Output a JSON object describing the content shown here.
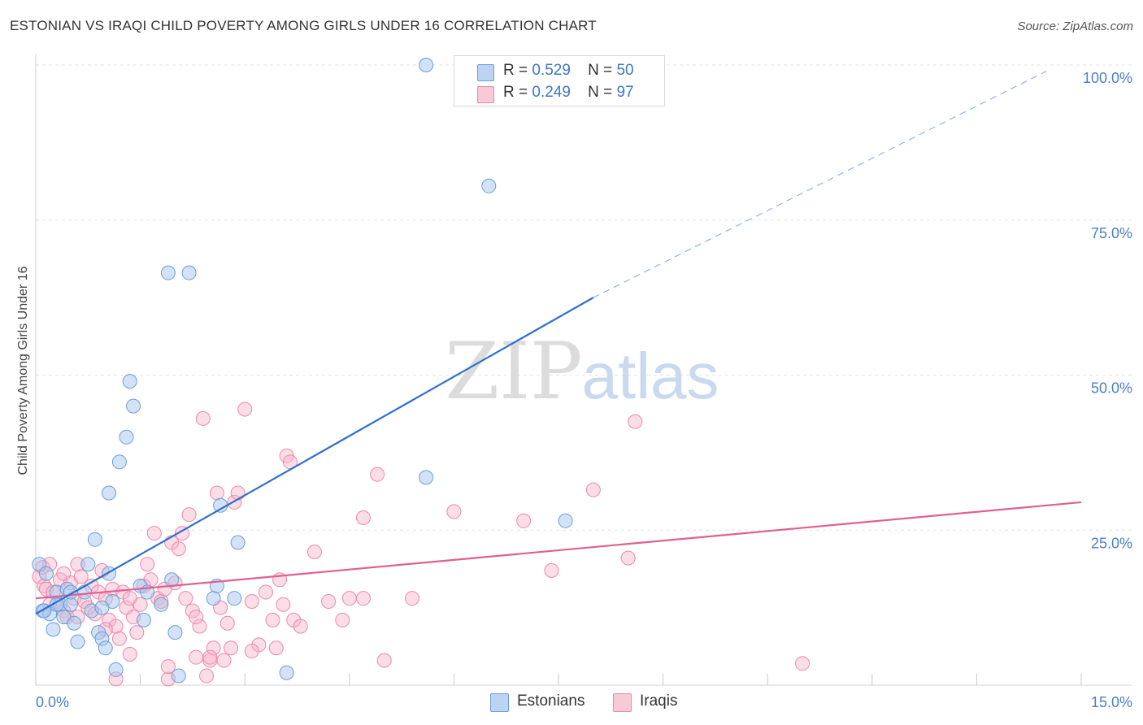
{
  "title": "ESTONIAN VS IRAQI CHILD POVERTY AMONG GIRLS UNDER 16 CORRELATION CHART",
  "source": "Source: ZipAtlas.com",
  "watermark": {
    "zip": "ZIP",
    "atlas": "atlas"
  },
  "colors": {
    "estonians": "#6a9fdc",
    "iraqis": "#ee88a9",
    "estonians_line": "#2f6fcf",
    "iraqis_line": "#e0608f",
    "tick_text": "#4a7ec9"
  },
  "stats": {
    "estonians": {
      "r_label": "R =",
      "r_value": "0.529",
      "n_label": "N =",
      "n_value": "50"
    },
    "iraqis": {
      "r_label": "R =",
      "r_value": "0.249",
      "n_label": "N =",
      "n_value": "97"
    }
  },
  "legend": {
    "estonians": "Estonians",
    "iraqis": "Iraqis"
  },
  "chart_data": {
    "type": "scatter",
    "title": "ESTONIAN VS IRAQI CHILD POVERTY AMONG GIRLS UNDER 16 CORRELATION CHART",
    "xlabel": "",
    "ylabel": "Child Poverty Among Girls Under 16",
    "xlim": [
      0,
      15
    ],
    "ylim": [
      0,
      100
    ],
    "x_tick_labels": [
      "0.0%",
      "15.0%"
    ],
    "y_ticks": [
      25,
      50,
      75,
      100
    ],
    "y_tick_labels": [
      "25.0%",
      "50.0%",
      "75.0%",
      "100.0%"
    ],
    "grid": true,
    "series": [
      {
        "name": "Estonians",
        "r": 0.529,
        "n": 50,
        "trend": {
          "x0": 0.0,
          "y0": 11.5,
          "x1": 8.0,
          "y1": 62.5,
          "dashed_to_x": 14.5,
          "dashed_to_y": 99.0
        },
        "points": [
          [
            0.05,
            19.5
          ],
          [
            0.1,
            12
          ],
          [
            0.15,
            18
          ],
          [
            0.2,
            11.5
          ],
          [
            0.25,
            9
          ],
          [
            0.3,
            15
          ],
          [
            0.35,
            13
          ],
          [
            0.4,
            11
          ],
          [
            0.45,
            15.5
          ],
          [
            0.5,
            13
          ],
          [
            0.55,
            10
          ],
          [
            0.6,
            7
          ],
          [
            0.7,
            15
          ],
          [
            0.75,
            19.5
          ],
          [
            0.8,
            12
          ],
          [
            0.85,
            23.5
          ],
          [
            0.9,
            8.5
          ],
          [
            0.95,
            7.5
          ],
          [
            1.0,
            6
          ],
          [
            1.05,
            18
          ],
          [
            1.1,
            13.5
          ],
          [
            1.05,
            31
          ],
          [
            1.15,
            2.5
          ],
          [
            1.2,
            36
          ],
          [
            1.3,
            40
          ],
          [
            1.35,
            49
          ],
          [
            1.4,
            45
          ],
          [
            1.5,
            16
          ],
          [
            1.55,
            10.5
          ],
          [
            1.6,
            15
          ],
          [
            1.8,
            13
          ],
          [
            1.9,
            66.5
          ],
          [
            1.95,
            17
          ],
          [
            2.0,
            8.5
          ],
          [
            2.05,
            1.5
          ],
          [
            2.2,
            66.5
          ],
          [
            2.55,
            14
          ],
          [
            2.6,
            16
          ],
          [
            2.65,
            29
          ],
          [
            2.85,
            14
          ],
          [
            2.9,
            23
          ],
          [
            3.6,
            2
          ],
          [
            5.6,
            33.5
          ],
          [
            5.6,
            100
          ],
          [
            6.5,
            80.5
          ],
          [
            7.6,
            26.5
          ],
          [
            0.12,
            12
          ],
          [
            0.3,
            13
          ],
          [
            0.5,
            15
          ],
          [
            0.95,
            12.5
          ]
        ]
      },
      {
        "name": "Iraqis",
        "r": 0.249,
        "n": 97,
        "trend": {
          "x0": 0.0,
          "y0": 14.0,
          "x1": 15.0,
          "y1": 29.5
        },
        "points": [
          [
            0.05,
            17.5
          ],
          [
            0.1,
            19
          ],
          [
            0.12,
            16
          ],
          [
            0.15,
            15.5
          ],
          [
            0.2,
            19.5
          ],
          [
            0.25,
            15
          ],
          [
            0.3,
            13
          ],
          [
            0.35,
            17
          ],
          [
            0.4,
            12
          ],
          [
            0.45,
            11
          ],
          [
            0.5,
            16.5
          ],
          [
            0.55,
            14
          ],
          [
            0.6,
            19.5
          ],
          [
            0.65,
            17.5
          ],
          [
            0.7,
            13.5
          ],
          [
            0.75,
            12.5
          ],
          [
            0.8,
            16
          ],
          [
            0.85,
            11.5
          ],
          [
            0.9,
            15
          ],
          [
            0.95,
            18.5
          ],
          [
            1.0,
            14
          ],
          [
            1.05,
            10.5
          ],
          [
            1.1,
            15.5
          ],
          [
            1.15,
            9.5
          ],
          [
            1.2,
            7.5
          ],
          [
            1.25,
            15
          ],
          [
            1.3,
            12.5
          ],
          [
            1.35,
            14
          ],
          [
            1.4,
            11
          ],
          [
            1.45,
            8.5
          ],
          [
            1.5,
            13
          ],
          [
            1.55,
            16
          ],
          [
            1.6,
            19.5
          ],
          [
            1.65,
            17
          ],
          [
            1.7,
            24.5
          ],
          [
            1.75,
            14
          ],
          [
            1.8,
            13.5
          ],
          [
            1.85,
            15.5
          ],
          [
            1.9,
            1
          ],
          [
            1.95,
            23
          ],
          [
            2.0,
            16.5
          ],
          [
            2.05,
            22
          ],
          [
            2.1,
            24.5
          ],
          [
            2.15,
            14
          ],
          [
            2.2,
            27.5
          ],
          [
            2.25,
            12
          ],
          [
            2.3,
            4.5
          ],
          [
            2.35,
            9.5
          ],
          [
            2.4,
            43
          ],
          [
            2.45,
            1.5
          ],
          [
            2.5,
            4
          ],
          [
            2.55,
            6
          ],
          [
            2.6,
            31
          ],
          [
            2.65,
            12.5
          ],
          [
            2.7,
            4
          ],
          [
            2.75,
            10
          ],
          [
            2.8,
            6
          ],
          [
            2.85,
            29.5
          ],
          [
            2.9,
            31
          ],
          [
            3.0,
            44.5
          ],
          [
            3.1,
            13.5
          ],
          [
            3.2,
            6.5
          ],
          [
            3.3,
            15
          ],
          [
            3.4,
            10.5
          ],
          [
            3.45,
            6
          ],
          [
            3.5,
            17
          ],
          [
            3.55,
            13
          ],
          [
            3.6,
            37
          ],
          [
            3.65,
            36
          ],
          [
            3.7,
            10.5
          ],
          [
            3.8,
            9.5
          ],
          [
            4.0,
            21.5
          ],
          [
            4.2,
            13.5
          ],
          [
            4.4,
            10.5
          ],
          [
            4.5,
            14
          ],
          [
            4.7,
            14
          ],
          [
            4.7,
            27
          ],
          [
            4.9,
            34
          ],
          [
            5.0,
            4
          ],
          [
            5.4,
            14
          ],
          [
            6.0,
            28
          ],
          [
            7.0,
            26.5
          ],
          [
            7.4,
            18.5
          ],
          [
            8.0,
            31.5
          ],
          [
            8.5,
            20.5
          ],
          [
            8.6,
            42.5
          ],
          [
            11.0,
            3.5
          ],
          [
            1.35,
            5
          ],
          [
            1.9,
            3
          ],
          [
            0.6,
            11
          ],
          [
            1.15,
            1
          ],
          [
            2.5,
            4.5
          ],
          [
            1.0,
            9
          ],
          [
            0.4,
            18
          ],
          [
            0.2,
            13
          ],
          [
            3.1,
            5.5
          ],
          [
            2.3,
            11
          ]
        ]
      }
    ]
  }
}
